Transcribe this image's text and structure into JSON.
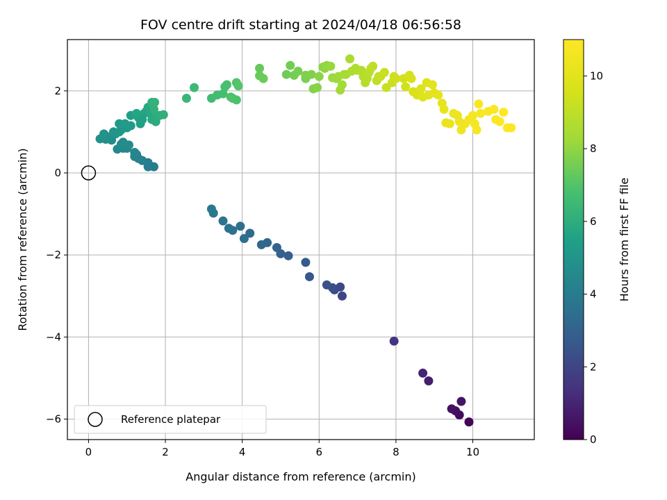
{
  "chart_data": {
    "type": "scatter",
    "title": "FOV centre drift starting at 2024/04/18 06:56:58",
    "xlabel": "Angular distance from reference (arcmin)",
    "ylabel": "Rotation from reference (arcmin)",
    "xlim": [
      -0.55,
      11.6
    ],
    "ylim": [
      -6.5,
      3.25
    ],
    "xticks": [
      0,
      2,
      4,
      6,
      8,
      10
    ],
    "yticks": [
      -6,
      -4,
      -2,
      0,
      2
    ],
    "grid": true,
    "colormap": "viridis",
    "colorbar": {
      "label": "Hours from first FF file",
      "range": [
        0,
        11
      ],
      "ticks": [
        0,
        2,
        4,
        6,
        8,
        10
      ]
    },
    "legend": {
      "placement": "lower-left",
      "entries": [
        "Reference platepar"
      ]
    },
    "reference_point": {
      "x": 0,
      "y": 0,
      "marker": "open-circle"
    },
    "points": [
      [
        9.9,
        -6.07,
        0.1
      ],
      [
        9.65,
        -5.9,
        0.25
      ],
      [
        9.55,
        -5.8,
        0.35
      ],
      [
        9.45,
        -5.75,
        0.45
      ],
      [
        9.7,
        -5.57,
        0.55
      ],
      [
        8.85,
        -5.07,
        0.85
      ],
      [
        8.7,
        -4.88,
        1.0
      ],
      [
        7.95,
        -4.1,
        1.45
      ],
      [
        6.6,
        -3.0,
        2.0
      ],
      [
        6.55,
        -2.78,
        2.1
      ],
      [
        6.4,
        -2.85,
        2.2
      ],
      [
        6.35,
        -2.8,
        2.3
      ],
      [
        6.2,
        -2.73,
        2.4
      ],
      [
        5.75,
        -2.53,
        2.6
      ],
      [
        5.65,
        -2.18,
        2.7
      ],
      [
        5.2,
        -2.02,
        2.85
      ],
      [
        5.0,
        -1.97,
        2.95
      ],
      [
        4.9,
        -1.82,
        3.05
      ],
      [
        4.65,
        -1.7,
        3.15
      ],
      [
        4.5,
        -1.75,
        3.25
      ],
      [
        4.2,
        -1.47,
        3.35
      ],
      [
        4.05,
        -1.6,
        3.45
      ],
      [
        3.95,
        -1.3,
        3.5
      ],
      [
        3.75,
        -1.4,
        3.6
      ],
      [
        3.65,
        -1.35,
        3.65
      ],
      [
        3.5,
        -1.17,
        3.7
      ],
      [
        3.25,
        -0.98,
        3.8
      ],
      [
        3.2,
        -0.88,
        3.9
      ],
      [
        1.7,
        0.15,
        4.0
      ],
      [
        1.55,
        0.15,
        4.05
      ],
      [
        1.55,
        0.25,
        4.1
      ],
      [
        1.4,
        0.3,
        4.15
      ],
      [
        1.3,
        0.35,
        4.2
      ],
      [
        1.25,
        0.45,
        4.25
      ],
      [
        1.2,
        0.4,
        4.3
      ],
      [
        1.2,
        0.5,
        4.35
      ],
      [
        0.9,
        0.6,
        4.4
      ],
      [
        1.0,
        0.6,
        4.45
      ],
      [
        0.75,
        0.58,
        4.5
      ],
      [
        1.05,
        0.68,
        4.55
      ],
      [
        0.85,
        0.7,
        4.6
      ],
      [
        0.9,
        0.75,
        4.65
      ],
      [
        0.6,
        0.8,
        4.7
      ],
      [
        0.45,
        0.82,
        4.75
      ],
      [
        0.3,
        0.83,
        4.8
      ],
      [
        0.5,
        0.88,
        4.85
      ],
      [
        0.4,
        0.95,
        4.9
      ],
      [
        0.7,
        0.95,
        4.95
      ],
      [
        0.65,
        1.0,
        5.0
      ],
      [
        0.85,
        1.05,
        5.05
      ],
      [
        0.8,
        1.0,
        5.1
      ],
      [
        1.0,
        1.1,
        5.15
      ],
      [
        0.8,
        1.2,
        5.2
      ],
      [
        1.1,
        1.15,
        5.25
      ],
      [
        0.95,
        1.2,
        5.3
      ],
      [
        1.1,
        1.4,
        5.4
      ],
      [
        1.35,
        1.2,
        5.45
      ],
      [
        1.3,
        1.35,
        5.5
      ],
      [
        1.4,
        1.3,
        5.55
      ],
      [
        1.45,
        1.45,
        5.6
      ],
      [
        1.5,
        1.5,
        5.65
      ],
      [
        1.25,
        1.45,
        5.7
      ],
      [
        1.6,
        1.45,
        5.75
      ],
      [
        1.55,
        1.6,
        5.8
      ],
      [
        1.65,
        1.3,
        5.85
      ],
      [
        1.75,
        1.25,
        5.9
      ],
      [
        1.75,
        1.35,
        5.95
      ],
      [
        1.85,
        1.4,
        6.0
      ],
      [
        1.95,
        1.42,
        6.05
      ],
      [
        1.7,
        1.55,
        6.1
      ],
      [
        1.65,
        1.72,
        6.15
      ],
      [
        1.72,
        1.72,
        6.2
      ],
      [
        2.55,
        1.82,
        6.4
      ],
      [
        2.75,
        2.08,
        6.5
      ],
      [
        3.2,
        1.82,
        6.6
      ],
      [
        3.35,
        1.9,
        6.65
      ],
      [
        3.5,
        1.93,
        6.7
      ],
      [
        3.55,
        2.1,
        6.75
      ],
      [
        3.6,
        2.15,
        6.8
      ],
      [
        3.75,
        1.82,
        6.85
      ],
      [
        3.85,
        1.78,
        6.9
      ],
      [
        3.7,
        1.85,
        6.95
      ],
      [
        3.85,
        2.2,
        7.0
      ],
      [
        3.9,
        2.12,
        7.05
      ],
      [
        4.45,
        2.55,
        7.3
      ],
      [
        4.45,
        2.37,
        7.35
      ],
      [
        4.55,
        2.3,
        7.4
      ],
      [
        5.15,
        2.4,
        7.45
      ],
      [
        5.25,
        2.62,
        7.5
      ],
      [
        5.35,
        2.38,
        7.55
      ],
      [
        5.45,
        2.48,
        7.6
      ],
      [
        5.65,
        2.3,
        7.65
      ],
      [
        5.65,
        2.38,
        7.7
      ],
      [
        5.8,
        2.4,
        7.75
      ],
      [
        5.85,
        2.05,
        7.8
      ],
      [
        5.95,
        2.08,
        7.85
      ],
      [
        6.0,
        2.35,
        7.9
      ],
      [
        6.1,
        2.58,
        7.95
      ],
      [
        6.15,
        2.55,
        8.0
      ],
      [
        6.2,
        2.62,
        8.05
      ],
      [
        6.3,
        2.6,
        8.1
      ],
      [
        6.35,
        2.32,
        8.15
      ],
      [
        6.45,
        2.3,
        8.2
      ],
      [
        6.5,
        2.35,
        8.25
      ],
      [
        6.55,
        2.02,
        8.3
      ],
      [
        6.6,
        2.15,
        8.35
      ],
      [
        6.65,
        2.4,
        8.4
      ],
      [
        6.7,
        2.4,
        8.45
      ],
      [
        6.8,
        2.78,
        8.5
      ],
      [
        6.85,
        2.48,
        8.55
      ],
      [
        6.95,
        2.55,
        8.6
      ],
      [
        7.0,
        2.5,
        8.65
      ],
      [
        7.1,
        2.5,
        8.7
      ],
      [
        7.15,
        2.35,
        8.75
      ],
      [
        7.2,
        2.2,
        8.8
      ],
      [
        7.25,
        2.3,
        8.85
      ],
      [
        7.3,
        2.45,
        8.9
      ],
      [
        7.35,
        2.55,
        8.95
      ],
      [
        7.4,
        2.6,
        9.0
      ],
      [
        7.5,
        2.25,
        9.05
      ],
      [
        7.55,
        2.35,
        9.1
      ],
      [
        7.6,
        2.35,
        9.15
      ],
      [
        7.7,
        2.45,
        9.2
      ],
      [
        7.75,
        2.08,
        9.25
      ],
      [
        7.9,
        2.2,
        9.3
      ],
      [
        7.95,
        2.35,
        9.35
      ],
      [
        8.0,
        2.3,
        9.4
      ],
      [
        8.2,
        2.3,
        9.45
      ],
      [
        8.25,
        2.1,
        9.5
      ],
      [
        8.35,
        2.38,
        9.55
      ],
      [
        8.4,
        2.3,
        9.6
      ],
      [
        8.45,
        1.98,
        9.65
      ],
      [
        8.55,
        1.9,
        9.7
      ],
      [
        8.6,
        1.95,
        9.75
      ],
      [
        8.65,
        2.05,
        9.8
      ],
      [
        8.7,
        1.85,
        9.85
      ],
      [
        8.8,
        2.2,
        9.9
      ],
      [
        8.85,
        1.9,
        9.95
      ],
      [
        8.95,
        2.15,
        10.0
      ],
      [
        9.0,
        1.95,
        10.05
      ],
      [
        9.1,
        1.9,
        10.1
      ],
      [
        9.2,
        1.7,
        10.15
      ],
      [
        9.25,
        1.55,
        10.2
      ],
      [
        9.3,
        1.22,
        10.25
      ],
      [
        9.4,
        1.2,
        10.3
      ],
      [
        9.5,
        1.45,
        10.35
      ],
      [
        9.6,
        1.4,
        10.4
      ],
      [
        9.65,
        1.25,
        10.45
      ],
      [
        9.7,
        1.05,
        10.5
      ],
      [
        9.8,
        1.2,
        10.55
      ],
      [
        9.9,
        1.3,
        10.6
      ],
      [
        10.0,
        1.4,
        10.65
      ],
      [
        10.05,
        1.2,
        10.7
      ],
      [
        10.1,
        1.05,
        10.75
      ],
      [
        10.15,
        1.68,
        10.8
      ],
      [
        10.2,
        1.45,
        10.85
      ],
      [
        10.4,
        1.5,
        10.9
      ],
      [
        10.55,
        1.55,
        10.92
      ],
      [
        10.6,
        1.3,
        10.94
      ],
      [
        10.7,
        1.25,
        10.96
      ],
      [
        10.8,
        1.48,
        10.98
      ],
      [
        10.9,
        1.1,
        10.99
      ],
      [
        11.0,
        1.1,
        11.0
      ]
    ]
  }
}
